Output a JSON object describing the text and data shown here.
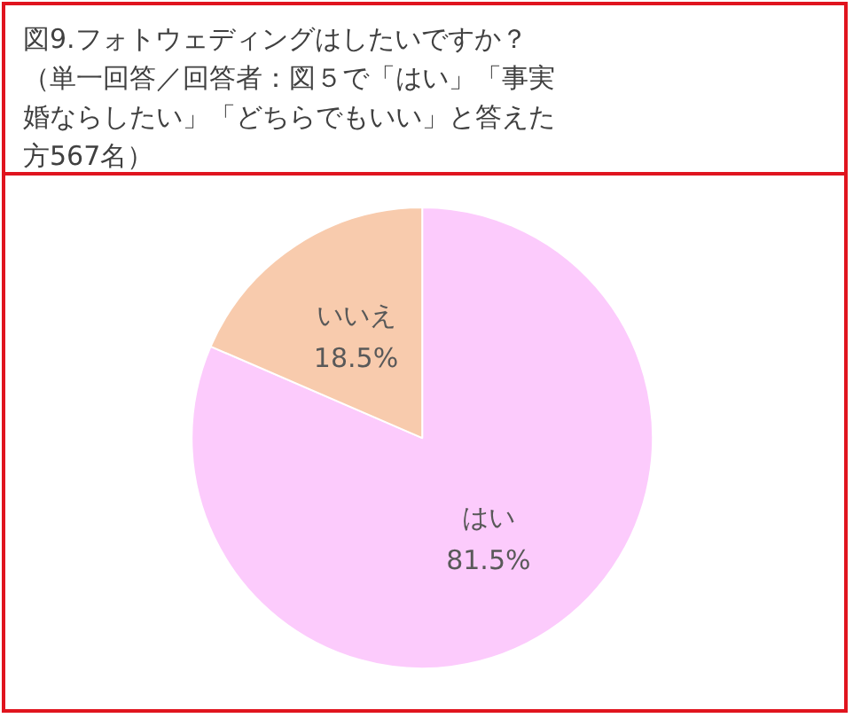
{
  "chart_data": {
    "type": "pie",
    "title": "図9.フォトウェディングはしたいですか？",
    "subtitle": "（単一回答／回答者：図５で「はい」「事実婚ならしたい」「どちらでもいい」と答えた方567名）",
    "categories": [
      "はい",
      "いいえ"
    ],
    "values": [
      81.5,
      18.5
    ],
    "colors": [
      "#fccbfc",
      "#f8cbad"
    ],
    "value_labels": [
      "81.5%",
      "18.5%"
    ],
    "legend": false
  }
}
